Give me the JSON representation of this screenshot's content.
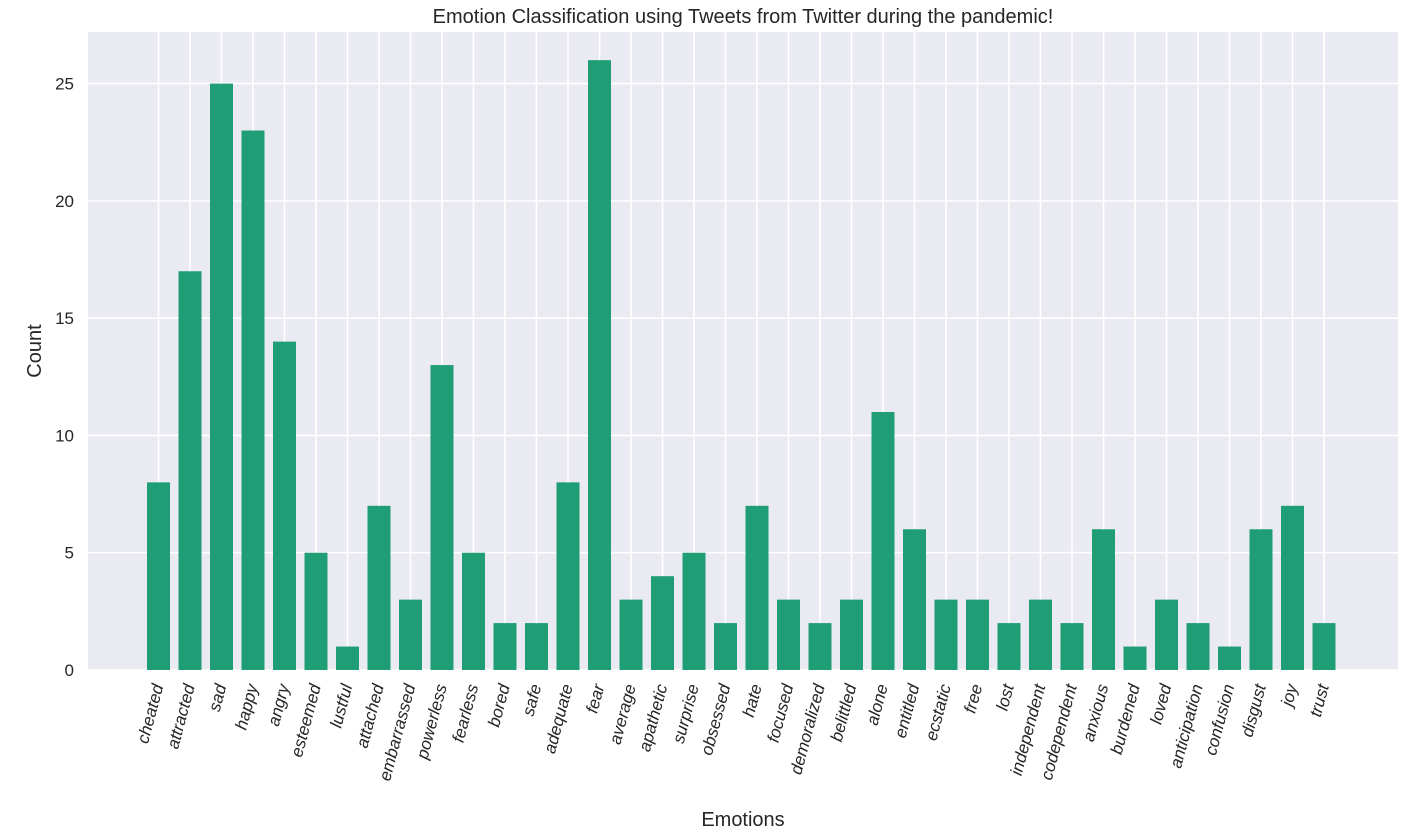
{
  "chart_data": {
    "type": "bar",
    "title": "Emotion Classification using Tweets from Twitter during the pandemic!",
    "xlabel": "Emotions",
    "ylabel": "Count",
    "ylim": [
      0,
      27.2
    ],
    "yticks": [
      0,
      5,
      10,
      15,
      20,
      25
    ],
    "grid": true,
    "categories": [
      "cheated",
      "attracted",
      "sad",
      "happy",
      "angry",
      "esteemed",
      "lustful",
      "attached",
      "embarrassed",
      "powerless",
      "fearless",
      "bored",
      "safe",
      "adequate",
      "fear",
      "average",
      "apathetic",
      "surprise",
      "obsessed",
      "hate",
      "focused",
      "demoralized",
      "belittled",
      "alone",
      "entitled",
      "ecstatic",
      "free",
      "lost",
      "independent",
      "codependent",
      "anxious",
      "burdened",
      "loved",
      "anticipation",
      "confusion",
      "disgust",
      "joy",
      "trust"
    ],
    "values": [
      8,
      17,
      25,
      23,
      14,
      5,
      1,
      7,
      3,
      13,
      5,
      2,
      2,
      8,
      26,
      3,
      4,
      5,
      2,
      7,
      3,
      2,
      3,
      11,
      6,
      3,
      3,
      2,
      3,
      2,
      6,
      1,
      3,
      2,
      1,
      6,
      7,
      2
    ],
    "bar_color": "#1f9e75",
    "background_color": "#eaeaf2",
    "grid_color": "#ffffff"
  }
}
